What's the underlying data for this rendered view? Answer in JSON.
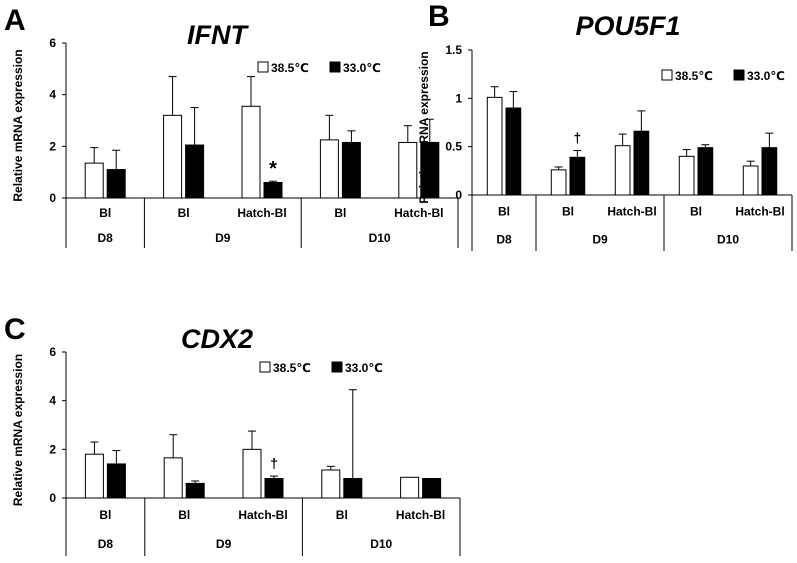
{
  "legend_labels": [
    "38.5℃",
    "33.0℃"
  ],
  "colors": {
    "series_a": "#ffffff",
    "series_b": "#000000",
    "stroke": "#000000"
  },
  "panels": [
    {
      "letter": "A",
      "chart_data": {
        "type": "bar",
        "title": "IFNT",
        "ylabel": "Relative mRNA expression",
        "ylim": [
          0,
          6
        ],
        "yticks": [
          "0",
          "2",
          "4",
          "6"
        ],
        "categories": [
          "Bl",
          "Bl",
          "Hatch-Bl",
          "Bl",
          "Hatch-Bl"
        ],
        "groups": [
          {
            "label": "D8",
            "span": 1
          },
          {
            "label": "D9",
            "span": 2
          },
          {
            "label": "D10",
            "span": 2
          }
        ],
        "series": [
          {
            "name": "38.5℃",
            "values": [
              1.35,
              3.2,
              3.55,
              2.25,
              2.15
            ],
            "errors": [
              0.6,
              1.5,
              1.15,
              0.95,
              0.65
            ]
          },
          {
            "name": "33.0℃",
            "values": [
              1.1,
              2.05,
              0.6,
              2.15,
              2.15
            ],
            "errors": [
              0.75,
              1.45,
              0.05,
              0.45,
              0.9
            ]
          }
        ],
        "annotations": [
          {
            "category_index": 2,
            "series_index": 1,
            "text": "*"
          }
        ]
      }
    },
    {
      "letter": "B",
      "chart_data": {
        "type": "bar",
        "title": "POU5F1",
        "ylabel": "Relative mRNA expression",
        "ylim": [
          0,
          1.5
        ],
        "yticks": [
          "0",
          "0.5",
          "1",
          "1.5"
        ],
        "categories": [
          "Bl",
          "Bl",
          "Hatch-Bl",
          "Bl",
          "Hatch-Bl"
        ],
        "groups": [
          {
            "label": "D8",
            "span": 1
          },
          {
            "label": "D9",
            "span": 2
          },
          {
            "label": "D10",
            "span": 2
          }
        ],
        "series": [
          {
            "name": "38.5℃",
            "values": [
              1.01,
              0.26,
              0.51,
              0.4,
              0.3
            ],
            "errors": [
              0.11,
              0.03,
              0.12,
              0.07,
              0.05
            ]
          },
          {
            "name": "33.0℃",
            "values": [
              0.9,
              0.39,
              0.66,
              0.49,
              0.49
            ],
            "errors": [
              0.17,
              0.07,
              0.21,
              0.03,
              0.15
            ]
          }
        ],
        "annotations": [
          {
            "category_index": 1,
            "series_index": 1,
            "text": "†"
          }
        ]
      }
    },
    {
      "letter": "C",
      "chart_data": {
        "type": "bar",
        "title": "CDX2",
        "ylabel": "Relative mRNA expression",
        "ylim": [
          0,
          6
        ],
        "yticks": [
          "0",
          "2",
          "4",
          "6"
        ],
        "categories": [
          "Bl",
          "Bl",
          "Hatch-Bl",
          "Bl",
          "Hatch-Bl"
        ],
        "groups": [
          {
            "label": "D8",
            "span": 1
          },
          {
            "label": "D9",
            "span": 2
          },
          {
            "label": "D10",
            "span": 2
          }
        ],
        "series": [
          {
            "name": "38.5℃",
            "values": [
              1.8,
              1.65,
              2.0,
              1.15,
              0.85
            ],
            "errors": [
              0.5,
              0.95,
              0.75,
              0.15,
              0.0
            ]
          },
          {
            "name": "33.0℃",
            "values": [
              1.4,
              0.6,
              0.8,
              0.8,
              0.8
            ],
            "errors": [
              0.55,
              0.1,
              0.1,
              3.65,
              0.0
            ]
          }
        ],
        "annotations": [
          {
            "category_index": 2,
            "series_index": 1,
            "text": "†"
          }
        ]
      }
    }
  ]
}
